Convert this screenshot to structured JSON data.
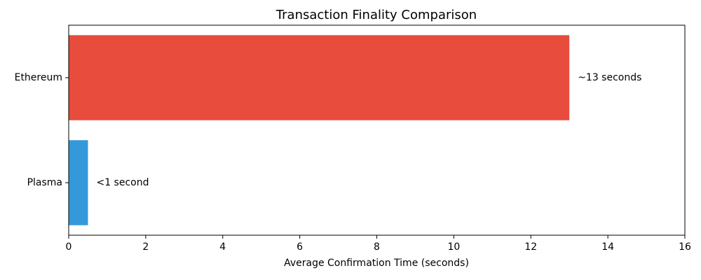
{
  "chart_data": {
    "type": "hbar",
    "title": "Transaction Finality Comparison",
    "x_label": "Average Confirmation Time (seconds)",
    "categories": [
      "Ethereum",
      "Plasma"
    ],
    "values": [
      13,
      0.5
    ],
    "value_labels": [
      "~13 seconds",
      "<1 second"
    ],
    "colors": [
      "#e74c3c",
      "#3498db"
    ],
    "xlim": [
      0,
      16
    ],
    "xticks": [
      0,
      2,
      4,
      6,
      8,
      10,
      12,
      14,
      16
    ]
  }
}
